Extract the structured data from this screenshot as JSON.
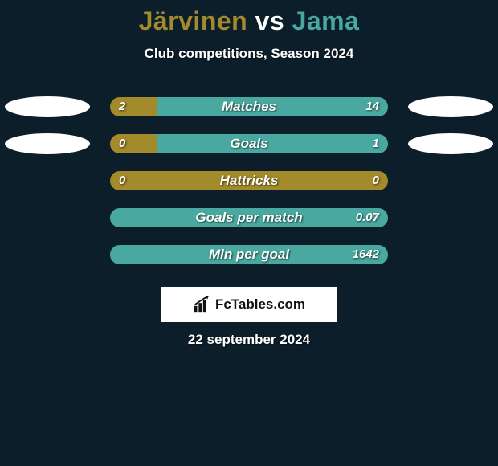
{
  "background_color": "#0c1e2a",
  "title": {
    "player1": "Järvinen",
    "vs": "vs",
    "player2": "Jama",
    "player1_color": "#a38a2a",
    "player2_color": "#49a9a0"
  },
  "subtitle": "Club competitions, Season 2024",
  "colors": {
    "left_bar": "#a38a2a",
    "right_bar": "#49a9a0",
    "text": "#ffffff"
  },
  "rows": [
    {
      "label": "Matches",
      "left_val": "2",
      "right_val": "14",
      "left_pct": 17,
      "right_pct": 83,
      "show_left_ellipse": true,
      "show_right_ellipse": true
    },
    {
      "label": "Goals",
      "left_val": "0",
      "right_val": "1",
      "left_pct": 17,
      "right_pct": 83,
      "show_left_ellipse": true,
      "show_right_ellipse": true
    },
    {
      "label": "Hattricks",
      "left_val": "0",
      "right_val": "0",
      "left_pct": 100,
      "right_pct": 0,
      "show_left_ellipse": false,
      "show_right_ellipse": false
    },
    {
      "label": "Goals per match",
      "left_val": "",
      "right_val": "0.07",
      "left_pct": 0,
      "right_pct": 100,
      "show_left_ellipse": false,
      "show_right_ellipse": false
    },
    {
      "label": "Min per goal",
      "left_val": "",
      "right_val": "1642",
      "left_pct": 0,
      "right_pct": 100,
      "show_left_ellipse": false,
      "show_right_ellipse": false
    }
  ],
  "brand": "FcTables.com",
  "date": "22 september 2024"
}
